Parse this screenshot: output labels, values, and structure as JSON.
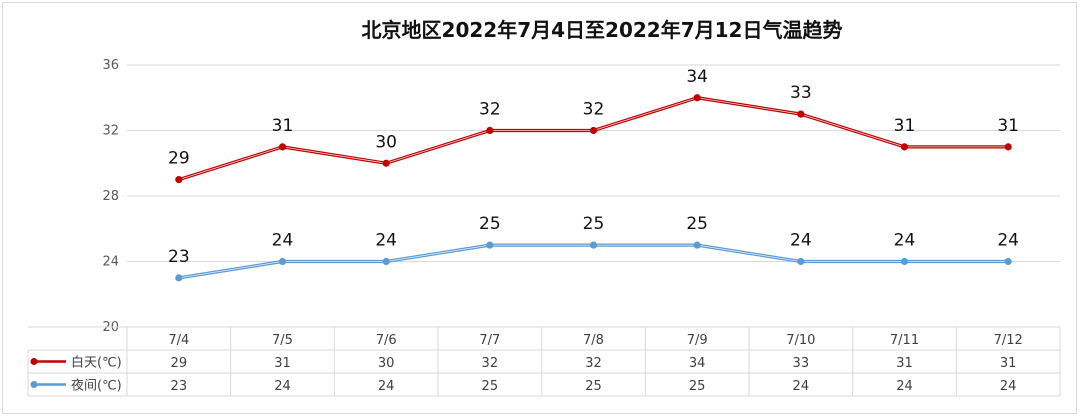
{
  "chart_data": {
    "type": "line",
    "title": "北京地区2022年7月4日至2022年7月12日气温趋势",
    "categories": [
      "7/4",
      "7/5",
      "7/6",
      "7/7",
      "7/8",
      "7/9",
      "7/10",
      "7/11",
      "7/12"
    ],
    "series": [
      {
        "name": "白天(℃)",
        "values": [
          29,
          31,
          30,
          32,
          32,
          34,
          33,
          31,
          31
        ],
        "color": "#c00000"
      },
      {
        "name": "夜间(℃)",
        "values": [
          23,
          24,
          24,
          25,
          25,
          25,
          24,
          24,
          24
        ],
        "color": "#5b9bd5"
      }
    ],
    "y_ticks": [
      "20",
      "24",
      "28",
      "32",
      "36"
    ],
    "ylim": [
      20,
      36
    ],
    "grid": true,
    "legend": "data table below chart"
  }
}
